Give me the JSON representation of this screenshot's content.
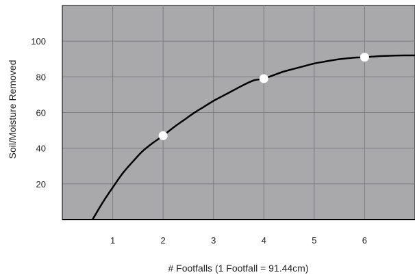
{
  "chart_data": {
    "type": "line",
    "title": "",
    "xlabel": "# Footfalls (1 Footfall = 91.44cm)",
    "ylabel": "Soil/Moisture Removed",
    "xlim": [
      0,
      7
    ],
    "ylim": [
      0,
      120
    ],
    "x_ticks": [
      1,
      2,
      3,
      4,
      5,
      6
    ],
    "y_ticks": [
      20,
      40,
      60,
      80,
      100
    ],
    "grid": true,
    "colors": {
      "plot_bg": "#a9a9ac",
      "grid": "#7d7d80",
      "line": "#000000",
      "marker": "#ffffff"
    },
    "series": [
      {
        "line": true,
        "x": [
          0.6,
          0.8,
          1,
          1.2,
          1.4,
          1.6,
          1.8,
          2,
          2.2,
          2.4,
          2.6,
          2.8,
          3,
          3.2,
          3.4,
          3.6,
          3.8,
          4,
          4.2,
          4.4,
          4.6,
          4.8,
          5,
          5.2,
          5.4,
          5.6,
          5.8,
          6,
          6.2,
          6.4,
          6.6,
          6.8,
          7
        ],
        "y": [
          0,
          9.5,
          18,
          26,
          32.5,
          38.5,
          43,
          47,
          51.5,
          55.5,
          59.5,
          63,
          66.5,
          69.5,
          72.5,
          75.5,
          78,
          79,
          81,
          83,
          84.5,
          86,
          87.5,
          88.5,
          89.5,
          90.2,
          90.8,
          91,
          91.4,
          91.7,
          91.9,
          92,
          92
        ]
      },
      {
        "markers": true,
        "x": [
          2,
          4,
          6
        ],
        "y": [
          47,
          79,
          91
        ]
      }
    ]
  }
}
